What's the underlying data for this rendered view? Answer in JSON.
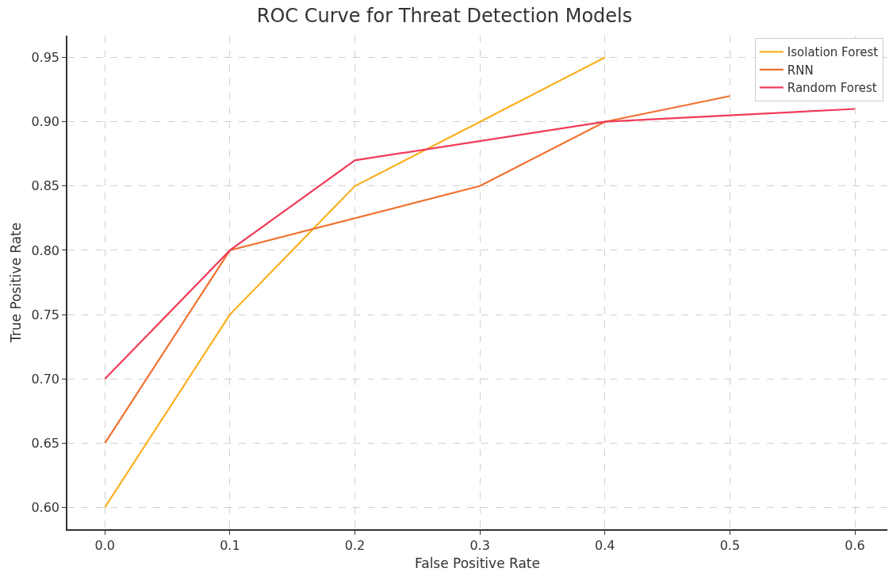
{
  "chart_data": {
    "type": "line",
    "title": "ROC Curve for Threat Detection Models",
    "xlabel": "False Positive Rate",
    "ylabel": "True Positive Rate",
    "series": [
      {
        "name": "Isolation Forest",
        "color": "#fbb021",
        "x": [
          0,
          0.1,
          0.2,
          0.3,
          0.4
        ],
        "values": [
          0.6,
          0.75,
          0.85,
          0.9,
          0.95
        ]
      },
      {
        "name": "RNN",
        "color": "#f0712f",
        "x": [
          0,
          0.1,
          0.3,
          0.4,
          0.5
        ],
        "values": [
          0.65,
          0.8,
          0.85,
          0.9,
          0.92
        ]
      },
      {
        "name": "Random Forest",
        "color": "#f03b5a",
        "x": [
          0,
          0.1,
          0.2,
          0.4,
          0.6
        ],
        "values": [
          0.7,
          0.8,
          0.87,
          0.9,
          0.91
        ]
      }
    ],
    "xlim": [
      -0.03,
      0.626
    ],
    "xticks": [
      {
        "value": 0,
        "label": "0.0"
      },
      0.1,
      0.2,
      0.3,
      0.4,
      0.5,
      0.6
    ],
    "ylim": [
      0.583,
      0.967
    ],
    "yticks": [
      {
        "value": 0.6,
        "label": "0.60"
      },
      0.65,
      {
        "value": 0.7,
        "label": "0.70"
      },
      0.75,
      {
        "value": 0.8,
        "label": "0.80"
      },
      0.85,
      {
        "value": 0.9,
        "label": "0.90"
      },
      0.95
    ],
    "grid": true,
    "legend": "top right",
    "line_style": "solid",
    "marker": "none"
  }
}
